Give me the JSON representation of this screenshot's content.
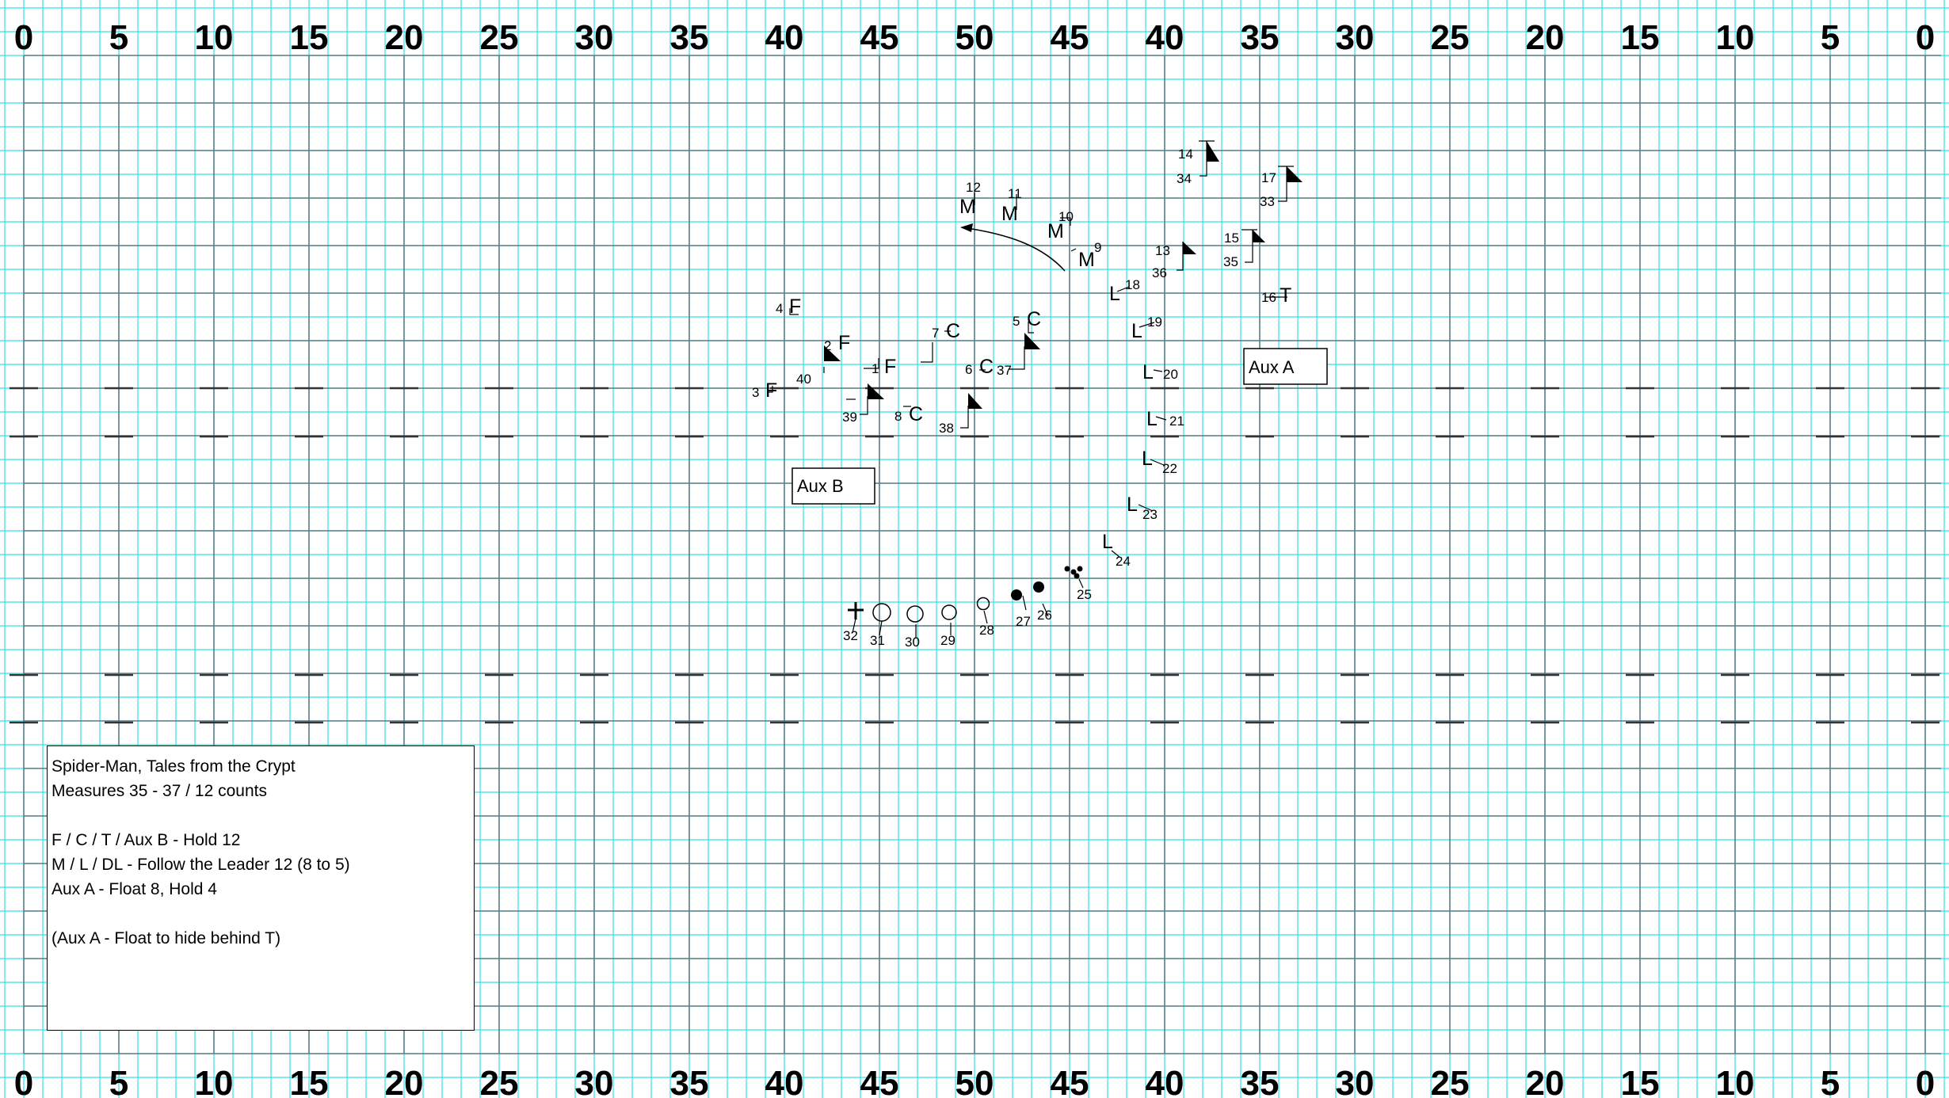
{
  "field": {
    "yard_labels_top": [
      "0",
      "5",
      "10",
      "15",
      "20",
      "25",
      "30",
      "35",
      "40",
      "45",
      "50",
      "45",
      "40",
      "35",
      "30",
      "25",
      "20",
      "15",
      "10",
      "5",
      "0"
    ],
    "yard_labels_bottom": [
      "0",
      "5",
      "10",
      "15",
      "20",
      "25",
      "30",
      "35",
      "40",
      "45",
      "50",
      "45",
      "40",
      "35",
      "30",
      "25",
      "20",
      "15",
      "10",
      "5",
      "0"
    ],
    "colors": {
      "minor_grid": "#33e1e6",
      "major_grid": "#5f7f85",
      "ink": "#000000",
      "background": "#ffffff"
    }
  },
  "markers": [
    {
      "n": "1",
      "s": "F",
      "k": "letter"
    },
    {
      "n": "2",
      "s": "F",
      "k": "letter"
    },
    {
      "n": "3",
      "s": "F",
      "k": "letter"
    },
    {
      "n": "4",
      "s": "F",
      "k": "letter"
    },
    {
      "n": "5",
      "s": "C",
      "k": "letter"
    },
    {
      "n": "6",
      "s": "C",
      "k": "letter"
    },
    {
      "n": "7",
      "s": "C",
      "k": "letter"
    },
    {
      "n": "8",
      "s": "C",
      "k": "letter"
    },
    {
      "n": "9",
      "s": "M",
      "k": "letter"
    },
    {
      "n": "10",
      "s": "M",
      "k": "letter"
    },
    {
      "n": "11",
      "s": "M",
      "k": "letter"
    },
    {
      "n": "12",
      "s": "M",
      "k": "letter"
    },
    {
      "n": "13",
      "s": "",
      "k": "flag"
    },
    {
      "n": "14",
      "s": "",
      "k": "flag"
    },
    {
      "n": "15",
      "s": "",
      "k": "flag"
    },
    {
      "n": "16",
      "s": "T",
      "k": "letter"
    },
    {
      "n": "17",
      "s": "",
      "k": "flag"
    },
    {
      "n": "18",
      "s": "L",
      "k": "letter"
    },
    {
      "n": "19",
      "s": "L",
      "k": "letter"
    },
    {
      "n": "20",
      "s": "L",
      "k": "letter"
    },
    {
      "n": "21",
      "s": "L",
      "k": "letter"
    },
    {
      "n": "22",
      "s": "L",
      "k": "letter"
    },
    {
      "n": "23",
      "s": "L",
      "k": "letter"
    },
    {
      "n": "24",
      "s": "L",
      "k": "letter"
    },
    {
      "n": "25",
      "s": "",
      "k": "dots"
    },
    {
      "n": "26",
      "s": "",
      "k": "disc"
    },
    {
      "n": "27",
      "s": "",
      "k": "disc"
    },
    {
      "n": "28",
      "s": "",
      "k": "circle-s"
    },
    {
      "n": "29",
      "s": "",
      "k": "circle-m"
    },
    {
      "n": "30",
      "s": "",
      "k": "circle-l"
    },
    {
      "n": "31",
      "s": "",
      "k": "circle-xl"
    },
    {
      "n": "32",
      "s": "",
      "k": "cross"
    },
    {
      "n": "33",
      "s": "",
      "k": "none"
    },
    {
      "n": "34",
      "s": "",
      "k": "none"
    },
    {
      "n": "35",
      "s": "",
      "k": "none"
    },
    {
      "n": "36",
      "s": "",
      "k": "none"
    },
    {
      "n": "37",
      "s": "",
      "k": "flag"
    },
    {
      "n": "38",
      "s": "",
      "k": "flag"
    },
    {
      "n": "39",
      "s": "",
      "k": "flag"
    },
    {
      "n": "40",
      "s": "",
      "k": "flag"
    }
  ],
  "aux_boxes": {
    "aux_a": "Aux A",
    "aux_b": "Aux B"
  },
  "info": {
    "line1": "Spider-Man, Tales from the Crypt",
    "line2": "Measures 35 - 37 / 12 counts",
    "line3": "",
    "line4": "F / C / T / Aux B - Hold 12",
    "line5": "M / L / DL - Follow the Leader 12 (8 to 5)",
    "line6": "Aux A - Float 8, Hold 4",
    "line7": "",
    "line8": "(Aux A - Float to hide behind T)"
  }
}
